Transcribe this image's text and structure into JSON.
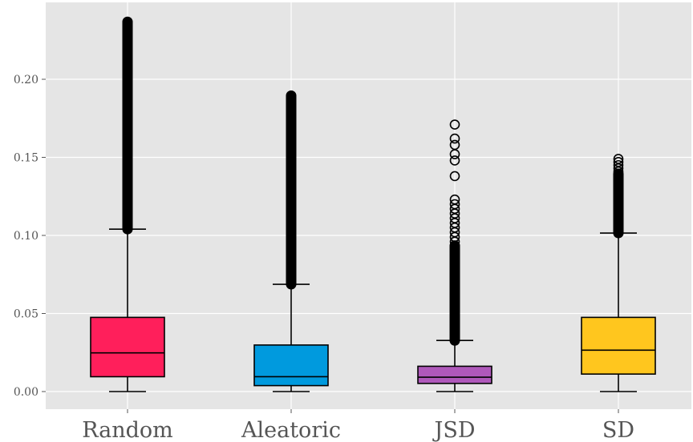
{
  "chart_data": {
    "type": "box",
    "title": "",
    "xlabel": "",
    "ylabel": "",
    "ylim": [
      -0.012,
      0.24
    ],
    "yticks": [
      0.0,
      0.05,
      0.1,
      0.15,
      0.2
    ],
    "ytick_labels": [
      "0.00",
      "0.05",
      "0.10",
      "0.15",
      "0.20"
    ],
    "grid": true,
    "legend": "none",
    "categories": [
      "Random",
      "Aleatoric",
      "JSD",
      "SD"
    ],
    "series": [
      {
        "category": "Random",
        "color": "#FF1F5B",
        "whisker_low": 0.0,
        "q1": 0.0095,
        "median": 0.0248,
        "q3": 0.0475,
        "whisker_high": 0.104,
        "outlier_min": 0.104,
        "outlier_max": 0.2368,
        "outlier_sparse": [
          0.214,
          0.218,
          0.222,
          0.225,
          0.228,
          0.231,
          0.234,
          0.2368
        ]
      },
      {
        "category": "Aleatoric",
        "color": "#009ADE",
        "whisker_low": 0.0,
        "q1": 0.0038,
        "median": 0.0095,
        "q3": 0.0298,
        "whisker_high": 0.0687,
        "outlier_min": 0.0687,
        "outlier_max": 0.1895,
        "outlier_sparse": [
          0.176,
          0.179,
          0.182,
          0.185,
          0.1875,
          0.1895
        ]
      },
      {
        "category": "JSD",
        "color": "#AF58BA",
        "whisker_low": 0.0,
        "q1": 0.0052,
        "median": 0.0092,
        "q3": 0.0162,
        "whisker_high": 0.0327,
        "outlier_min": 0.0327,
        "outlier_max": 0.0935,
        "outlier_sparse": [
          0.096,
          0.099,
          0.102,
          0.105,
          0.108,
          0.111,
          0.114,
          0.117,
          0.12,
          0.123,
          0.138,
          0.148,
          0.152,
          0.158,
          0.162,
          0.171
        ]
      },
      {
        "category": "SD",
        "color": "#FFC61E",
        "whisker_low": 0.0,
        "q1": 0.0112,
        "median": 0.0265,
        "q3": 0.0475,
        "whisker_high": 0.1015,
        "outlier_min": 0.1015,
        "outlier_max": 0.1395,
        "outlier_sparse": [
          0.141,
          0.143,
          0.145,
          0.147,
          0.149
        ]
      }
    ]
  }
}
